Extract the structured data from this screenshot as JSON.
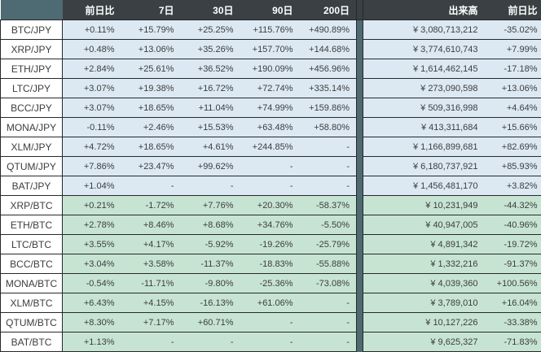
{
  "colors": {
    "header_bg": "#3a4043",
    "header_text": "#ffffff",
    "corner_bg": "#4e6a72",
    "divider_bg": "#4e6a72",
    "jpy_row_bg": "#dce9f3",
    "btc_row_bg": "#c7e4d3",
    "label_bg": "#ffffff",
    "border": "#26292b",
    "body_text": "#3d3d3d"
  },
  "chart_data": {
    "type": "table",
    "columns": [
      "",
      "前日比",
      "7日",
      "30日",
      "90日",
      "200日",
      "出来高",
      "前日比"
    ],
    "sections": [
      {
        "name": "JPY pairs",
        "rows": [
          {
            "pair": "BTC/JPY",
            "values": [
              "+0.11%",
              "+15.79%",
              "+25.25%",
              "+115.76%",
              "+490.89%",
              "¥ 3,080,713,212",
              "-35.02%"
            ]
          },
          {
            "pair": "XRP/JPY",
            "values": [
              "+0.48%",
              "+13.06%",
              "+35.26%",
              "+157.70%",
              "+144.68%",
              "¥ 3,774,610,743",
              "+7.99%"
            ]
          },
          {
            "pair": "ETH/JPY",
            "values": [
              "+2.84%",
              "+25.61%",
              "+36.52%",
              "+190.09%",
              "+456.96%",
              "¥ 1,614,462,145",
              "-17.18%"
            ]
          },
          {
            "pair": "LTC/JPY",
            "values": [
              "+3.07%",
              "+19.38%",
              "+16.72%",
              "+72.74%",
              "+335.14%",
              "¥ 273,090,598",
              "+13.06%"
            ]
          },
          {
            "pair": "BCC/JPY",
            "values": [
              "+3.07%",
              "+18.65%",
              "+11.04%",
              "+74.99%",
              "+159.86%",
              "¥ 509,316,998",
              "+4.64%"
            ]
          },
          {
            "pair": "MONA/JPY",
            "values": [
              "-0.11%",
              "+2.46%",
              "+15.53%",
              "+63.48%",
              "+58.80%",
              "¥ 413,311,684",
              "+15.66%"
            ]
          },
          {
            "pair": "XLM/JPY",
            "values": [
              "+4.72%",
              "+18.65%",
              "+4.61%",
              "+244.85%",
              "-",
              "¥ 1,166,899,681",
              "+82.69%"
            ]
          },
          {
            "pair": "QTUM/JPY",
            "values": [
              "+7.86%",
              "+23.47%",
              "+99.62%",
              "-",
              "-",
              "¥ 6,180,737,921",
              "+85.93%"
            ]
          },
          {
            "pair": "BAT/JPY",
            "values": [
              "+1.04%",
              "-",
              "-",
              "-",
              "-",
              "¥ 1,456,481,170",
              "+3.82%"
            ]
          }
        ]
      },
      {
        "name": "BTC pairs",
        "rows": [
          {
            "pair": "XRP/BTC",
            "values": [
              "+0.21%",
              "-1.72%",
              "+7.76%",
              "+20.30%",
              "-58.37%",
              "¥ 10,231,949",
              "-44.32%"
            ]
          },
          {
            "pair": "ETH/BTC",
            "values": [
              "+2.78%",
              "+8.46%",
              "+8.68%",
              "+34.76%",
              "-5.50%",
              "¥ 40,947,005",
              "-40.96%"
            ]
          },
          {
            "pair": "LTC/BTC",
            "values": [
              "+3.55%",
              "+4.17%",
              "-5.92%",
              "-19.26%",
              "-25.79%",
              "¥ 4,891,342",
              "-19.72%"
            ]
          },
          {
            "pair": "BCC/BTC",
            "values": [
              "+3.04%",
              "+3.58%",
              "-11.37%",
              "-18.83%",
              "-55.88%",
              "¥ 1,332,216",
              "-91.37%"
            ]
          },
          {
            "pair": "MONA/BTC",
            "values": [
              "-0.54%",
              "-11.71%",
              "-9.80%",
              "-25.36%",
              "-73.08%",
              "¥ 4,039,360",
              "+100.56%"
            ]
          },
          {
            "pair": "XLM/BTC",
            "values": [
              "+6.43%",
              "+4.15%",
              "-16.13%",
              "+61.06%",
              "-",
              "¥ 3,789,010",
              "+16.04%"
            ]
          },
          {
            "pair": "QTUM/BTC",
            "values": [
              "+8.30%",
              "+7.17%",
              "+60.71%",
              "-",
              "-",
              "¥ 10,127,226",
              "-33.38%"
            ]
          },
          {
            "pair": "BAT/BTC",
            "values": [
              "+1.13%",
              "-",
              "-",
              "-",
              "-",
              "¥ 9,625,327",
              "-71.83%"
            ]
          }
        ]
      }
    ]
  }
}
